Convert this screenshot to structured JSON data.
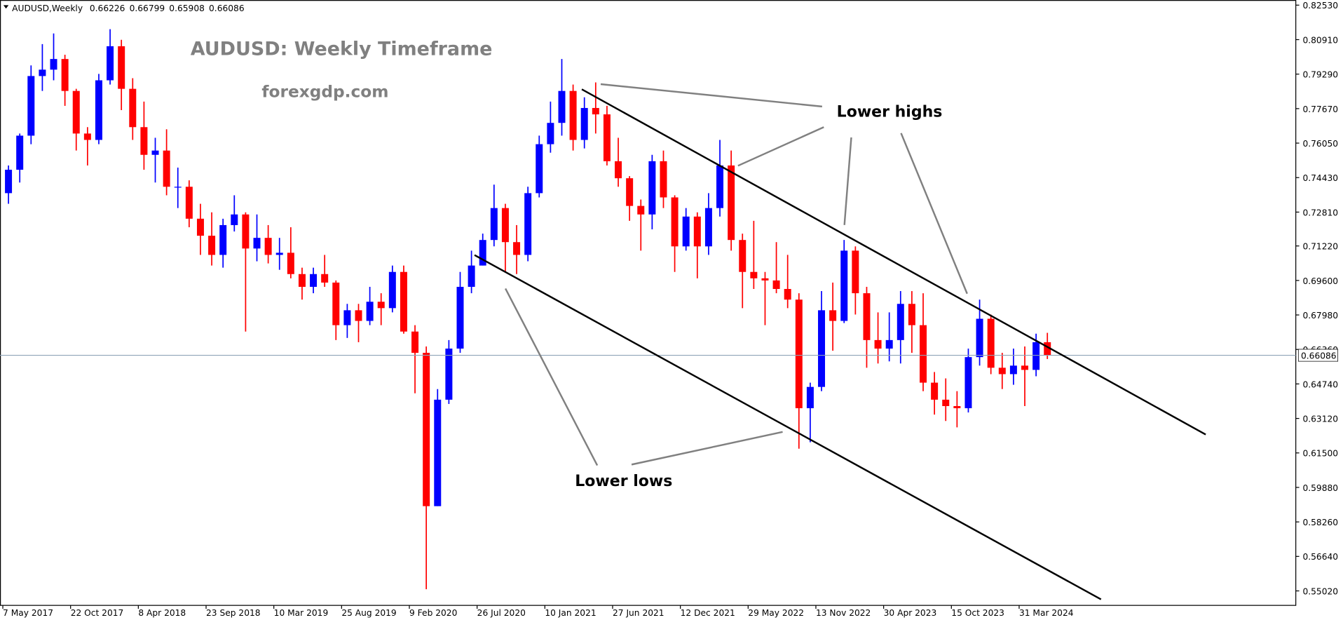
{
  "chart_data": {
    "type": "candlestick",
    "symbol_label": "AUDUSD,Weekly",
    "header_values": [
      0.66226,
      0.66799,
      0.65908,
      0.66086
    ],
    "title": "AUDUSD: Weekly Timeframe",
    "subtitle": "forexgdp.com",
    "annotations": [
      "Lower highs",
      "Lower lows"
    ],
    "up_color": "#0000ff",
    "down_color": "#ff0000",
    "current_price": 0.66086,
    "xlim": [
      "2017-04-30",
      "2026-02-15"
    ],
    "xticks": [
      {
        "value": "2017-05-07",
        "label": "7 May 2017"
      },
      {
        "value": "2017-10-22",
        "label": "22 Oct 2017"
      },
      {
        "value": "2018-04-08",
        "label": "8 Apr 2018"
      },
      {
        "value": "2018-09-23",
        "label": "23 Sep 2018"
      },
      {
        "value": "2019-03-10",
        "label": "10 Mar 2019"
      },
      {
        "value": "2019-08-25",
        "label": "25 Aug 2019"
      },
      {
        "value": "2020-02-09",
        "label": "9 Feb 2020"
      },
      {
        "value": "2020-07-26",
        "label": "26 Jul 2020"
      },
      {
        "value": "2021-01-10",
        "label": "10 Jan 2021"
      },
      {
        "value": "2021-06-27",
        "label": "27 Jun 2021"
      },
      {
        "value": "2021-12-12",
        "label": "12 Dec 2021"
      },
      {
        "value": "2022-05-29",
        "label": "29 May 2022"
      },
      {
        "value": "2022-11-13",
        "label": "13 Nov 2022"
      },
      {
        "value": "2023-04-30",
        "label": "30 Apr 2023"
      },
      {
        "value": "2023-10-15",
        "label": "15 Oct 2023"
      },
      {
        "value": "2024-03-31",
        "label": "31 Mar 2024"
      }
    ],
    "ylim": [
      0.5434,
      0.8277
    ],
    "yticks": [
      {
        "value": 0.8253,
        "label": "0.82530"
      },
      {
        "value": 0.8091,
        "label": "0.80910"
      },
      {
        "value": 0.7929,
        "label": "0.79290"
      },
      {
        "value": 0.7767,
        "label": "0.77670"
      },
      {
        "value": 0.7605,
        "label": "0.76050"
      },
      {
        "value": 0.7443,
        "label": "0.74430"
      },
      {
        "value": 0.7281,
        "label": "0.72810"
      },
      {
        "value": 0.7122,
        "label": "0.71220"
      },
      {
        "value": 0.696,
        "label": "0.69600"
      },
      {
        "value": 0.6798,
        "label": "0.67980"
      },
      {
        "value": 0.6636,
        "label": "0.66360"
      },
      {
        "value": 0.6474,
        "label": "0.64740"
      },
      {
        "value": 0.6312,
        "label": "0.63120"
      },
      {
        "value": 0.615,
        "label": "0.61500"
      },
      {
        "value": 0.5988,
        "label": "0.59880"
      },
      {
        "value": 0.5826,
        "label": "0.58260"
      },
      {
        "value": 0.5664,
        "label": "0.56640"
      },
      {
        "value": 0.5502,
        "label": "0.55020"
      }
    ],
    "x": [
      "2017-05-07",
      "2017-06-04",
      "2017-07-02",
      "2017-07-30",
      "2017-08-27",
      "2017-09-24",
      "2017-10-22",
      "2017-11-19",
      "2017-12-17",
      "2018-01-14",
      "2018-02-11",
      "2018-03-11",
      "2018-04-08",
      "2018-05-06",
      "2018-06-03",
      "2018-07-01",
      "2018-07-29",
      "2018-08-26",
      "2018-09-23",
      "2018-10-21",
      "2018-11-18",
      "2018-12-16",
      "2019-01-13",
      "2019-02-10",
      "2019-03-10",
      "2019-04-07",
      "2019-05-05",
      "2019-06-02",
      "2019-06-30",
      "2019-07-28",
      "2019-08-25",
      "2019-09-22",
      "2019-10-20",
      "2019-11-17",
      "2019-12-15",
      "2020-01-12",
      "2020-02-09",
      "2020-03-08",
      "2020-04-05",
      "2020-05-03",
      "2020-05-31",
      "2020-06-28",
      "2020-07-26",
      "2020-08-23",
      "2020-09-20",
      "2020-10-18",
      "2020-11-15",
      "2020-12-13",
      "2021-01-10",
      "2021-02-07",
      "2021-03-07",
      "2021-04-04",
      "2021-05-02",
      "2021-05-30",
      "2021-06-27",
      "2021-07-25",
      "2021-08-22",
      "2021-09-19",
      "2021-10-17",
      "2021-11-14",
      "2021-12-12",
      "2022-01-09",
      "2022-02-06",
      "2022-03-06",
      "2022-04-03",
      "2022-05-01",
      "2022-05-29",
      "2022-06-26",
      "2022-07-24",
      "2022-08-21",
      "2022-09-18",
      "2022-10-16",
      "2022-11-13",
      "2022-12-11",
      "2023-01-08",
      "2023-02-05",
      "2023-03-05",
      "2023-04-02",
      "2023-04-30",
      "2023-05-28",
      "2023-06-25",
      "2023-07-23",
      "2023-08-20",
      "2023-09-17",
      "2023-10-15",
      "2023-11-12",
      "2023-12-10",
      "2024-01-07",
      "2024-02-04",
      "2024-03-03",
      "2024-03-31",
      "2024-04-28",
      "2024-05-26"
    ],
    "open": [
      0.737,
      0.748,
      0.764,
      0.792,
      0.795,
      0.8,
      0.785,
      0.765,
      0.762,
      0.79,
      0.806,
      0.786,
      0.768,
      0.755,
      0.757,
      0.74,
      0.74,
      0.725,
      0.717,
      0.708,
      0.722,
      0.727,
      0.711,
      0.716,
      0.708,
      0.709,
      0.699,
      0.693,
      0.699,
      0.695,
      0.675,
      0.682,
      0.677,
      0.686,
      0.683,
      0.7,
      0.672,
      0.662,
      0.59,
      0.64,
      0.664,
      0.693,
      0.703,
      0.715,
      0.73,
      0.714,
      0.708,
      0.737,
      0.76,
      0.77,
      0.785,
      0.762,
      0.777,
      0.774,
      0.752,
      0.744,
      0.731,
      0.727,
      0.752,
      0.735,
      0.712,
      0.726,
      0.712,
      0.73,
      0.75,
      0.715,
      0.7,
      0.697,
      0.696,
      0.692,
      0.687,
      0.636,
      0.646,
      0.682,
      0.677,
      0.71,
      0.69,
      0.668,
      0.664,
      0.668,
      0.685,
      0.675,
      0.648,
      0.64,
      0.637,
      0.636,
      0.66,
      0.678,
      0.655,
      0.652,
      0.656,
      0.654,
      0.667
    ],
    "high": [
      0.75,
      0.765,
      0.797,
      0.807,
      0.812,
      0.802,
      0.786,
      0.768,
      0.793,
      0.814,
      0.809,
      0.791,
      0.78,
      0.763,
      0.767,
      0.749,
      0.743,
      0.732,
      0.728,
      0.725,
      0.736,
      0.728,
      0.727,
      0.722,
      0.716,
      0.721,
      0.702,
      0.702,
      0.708,
      0.696,
      0.685,
      0.685,
      0.693,
      0.69,
      0.703,
      0.703,
      0.675,
      0.665,
      0.645,
      0.668,
      0.7,
      0.71,
      0.718,
      0.741,
      0.732,
      0.722,
      0.74,
      0.764,
      0.78,
      0.8,
      0.788,
      0.782,
      0.789,
      0.778,
      0.763,
      0.745,
      0.734,
      0.755,
      0.757,
      0.736,
      0.73,
      0.728,
      0.737,
      0.762,
      0.757,
      0.718,
      0.724,
      0.7,
      0.714,
      0.708,
      0.69,
      0.648,
      0.691,
      0.695,
      0.715,
      0.712,
      0.693,
      0.681,
      0.681,
      0.691,
      0.691,
      0.69,
      0.653,
      0.65,
      0.644,
      0.664,
      0.687,
      0.68,
      0.662,
      0.664,
      0.665,
      0.671,
      0.6714
    ],
    "low": [
      0.732,
      0.742,
      0.76,
      0.785,
      0.79,
      0.778,
      0.757,
      0.75,
      0.76,
      0.788,
      0.776,
      0.762,
      0.748,
      0.742,
      0.736,
      0.73,
      0.721,
      0.708,
      0.703,
      0.702,
      0.719,
      0.672,
      0.705,
      0.704,
      0.701,
      0.697,
      0.687,
      0.69,
      0.693,
      0.668,
      0.669,
      0.667,
      0.675,
      0.675,
      0.681,
      0.671,
      0.643,
      0.551,
      0.59,
      0.638,
      0.662,
      0.69,
      0.703,
      0.712,
      0.7,
      0.699,
      0.705,
      0.735,
      0.756,
      0.764,
      0.757,
      0.758,
      0.765,
      0.75,
      0.74,
      0.724,
      0.71,
      0.72,
      0.73,
      0.7,
      0.71,
      0.697,
      0.708,
      0.726,
      0.71,
      0.683,
      0.692,
      0.675,
      0.69,
      0.683,
      0.617,
      0.62,
      0.644,
      0.663,
      0.676,
      0.68,
      0.655,
      0.657,
      0.658,
      0.657,
      0.662,
      0.644,
      0.633,
      0.63,
      0.627,
      0.634,
      0.656,
      0.652,
      0.645,
      0.647,
      0.637,
      0.651,
      0.6591
    ],
    "close": [
      0.748,
      0.764,
      0.792,
      0.795,
      0.8,
      0.785,
      0.765,
      0.762,
      0.79,
      0.806,
      0.786,
      0.768,
      0.755,
      0.757,
      0.74,
      0.74,
      0.725,
      0.717,
      0.708,
      0.722,
      0.727,
      0.711,
      0.716,
      0.708,
      0.709,
      0.699,
      0.693,
      0.699,
      0.695,
      0.675,
      0.682,
      0.677,
      0.686,
      0.683,
      0.7,
      0.672,
      0.662,
      0.59,
      0.64,
      0.664,
      0.693,
      0.703,
      0.715,
      0.73,
      0.714,
      0.708,
      0.737,
      0.76,
      0.77,
      0.785,
      0.762,
      0.777,
      0.774,
      0.752,
      0.744,
      0.731,
      0.727,
      0.752,
      0.735,
      0.712,
      0.726,
      0.712,
      0.73,
      0.75,
      0.715,
      0.7,
      0.697,
      0.696,
      0.692,
      0.687,
      0.636,
      0.646,
      0.682,
      0.677,
      0.71,
      0.69,
      0.668,
      0.664,
      0.668,
      0.685,
      0.675,
      0.648,
      0.64,
      0.637,
      0.636,
      0.66,
      0.678,
      0.655,
      0.652,
      0.656,
      0.654,
      0.667,
      0.66086
    ]
  }
}
